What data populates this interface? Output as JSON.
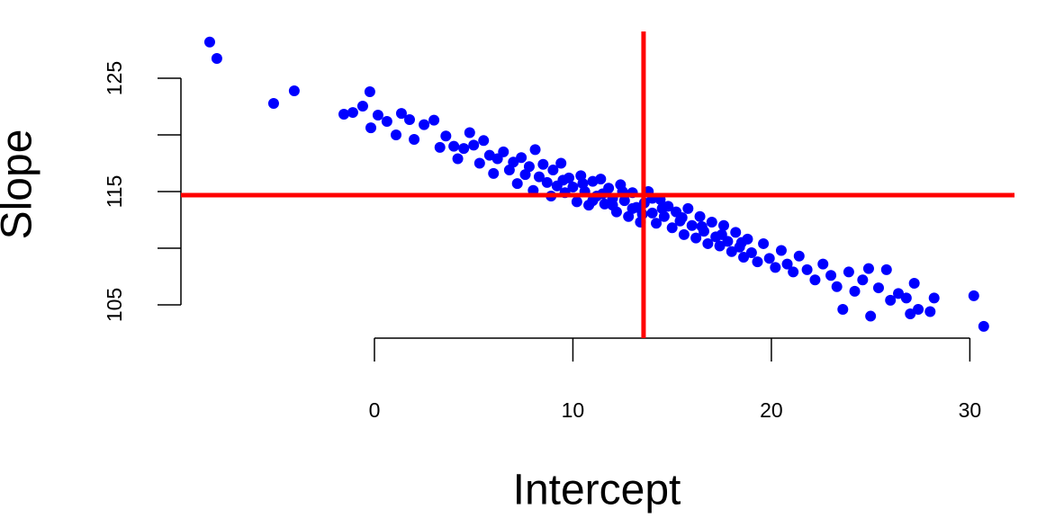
{
  "chart_data": {
    "type": "scatter",
    "x_label": "Intercept",
    "y_label": "Slope",
    "x": [
      -8.3,
      -7.94,
      -5.08,
      -4.04,
      -1.54,
      -1.09,
      -0.59,
      -0.23,
      -0.18,
      0.18,
      0.63,
      1.09,
      1.36,
      1.77,
      2.0,
      2.5,
      3.0,
      3.3,
      3.6,
      4.0,
      4.2,
      4.5,
      4.8,
      5.0,
      5.3,
      5.5,
      5.8,
      6.0,
      6.2,
      6.5,
      6.8,
      7.0,
      7.2,
      7.4,
      7.6,
      7.8,
      8.0,
      8.1,
      8.3,
      8.5,
      8.7,
      8.9,
      9.0,
      9.2,
      9.4,
      9.6,
      9.8,
      10.0,
      10.2,
      10.4,
      10.6,
      10.8,
      11.0,
      11.2,
      11.4,
      11.6,
      11.8,
      12.0,
      12.2,
      12.4,
      12.6,
      12.8,
      13.0,
      13.2,
      13.4,
      13.6,
      13.8,
      14.0,
      14.2,
      14.4,
      14.6,
      14.8,
      15.0,
      15.2,
      15.4,
      15.6,
      15.8,
      16.0,
      16.2,
      16.4,
      16.6,
      16.8,
      17.0,
      17.2,
      17.4,
      17.6,
      17.8,
      18.0,
      18.2,
      18.4,
      18.6,
      18.8,
      19.0,
      19.3,
      19.6,
      19.9,
      20.2,
      20.5,
      20.8,
      21.1,
      21.4,
      21.8,
      22.2,
      22.6,
      23.0,
      23.3,
      23.6,
      23.9,
      24.2,
      24.6,
      24.9,
      25.0,
      25.4,
      25.8,
      26.0,
      26.4,
      26.8,
      27.0,
      27.2,
      27.4,
      28.0,
      28.2,
      30.2,
      30.7,
      11.5,
      12.5,
      13.0,
      14.5,
      15.5,
      10.5,
      9.5,
      16.5,
      17.5,
      12.0,
      13.5,
      14.0,
      11.0,
      18.5
    ],
    "values": [
      128.2,
      126.75,
      122.78,
      123.89,
      121.83,
      121.98,
      122.54,
      123.81,
      120.63,
      121.75,
      121.19,
      120.0,
      121.9,
      121.35,
      119.6,
      120.9,
      121.3,
      118.9,
      119.9,
      119.0,
      117.9,
      118.8,
      120.2,
      119.1,
      117.5,
      119.5,
      118.2,
      116.6,
      117.9,
      118.5,
      116.9,
      117.6,
      115.7,
      118.0,
      116.5,
      117.2,
      115.1,
      118.7,
      116.3,
      117.4,
      115.8,
      114.6,
      116.9,
      115.5,
      117.5,
      114.9,
      116.2,
      115.4,
      114.1,
      116.4,
      115.0,
      113.8,
      115.9,
      114.6,
      116.1,
      113.9,
      115.3,
      114.4,
      113.2,
      115.6,
      114.2,
      112.8,
      114.9,
      113.6,
      112.3,
      114.0,
      115.0,
      113.1,
      112.2,
      114.3,
      112.8,
      113.7,
      111.8,
      113.2,
      112.4,
      111.2,
      113.5,
      112.0,
      110.9,
      112.8,
      111.5,
      110.4,
      112.3,
      111.0,
      110.2,
      112.0,
      110.6,
      109.7,
      111.4,
      110.1,
      109.2,
      110.8,
      109.6,
      108.8,
      110.4,
      109.1,
      108.3,
      109.8,
      108.6,
      107.9,
      109.3,
      108.1,
      107.2,
      108.6,
      107.6,
      106.6,
      104.6,
      107.9,
      106.2,
      107.2,
      108.2,
      104.0,
      106.5,
      108.1,
      105.4,
      106.0,
      105.6,
      104.2,
      106.9,
      104.6,
      104.4,
      105.6,
      105.8,
      103.1,
      114.8,
      115.0,
      113.5,
      113.5,
      112.7,
      115.7,
      116.0,
      111.9,
      111.2,
      113.8,
      113.0,
      114.4,
      114.2,
      110.5
    ],
    "color": "#0000ff",
    "xlim": [
      -9.75,
      32.25
    ],
    "ylim": [
      102.06,
      129.13
    ],
    "xticks": [
      0,
      10,
      20,
      30
    ],
    "yticks": [
      105,
      115,
      125
    ],
    "y_minor_ticks": [
      110,
      120
    ],
    "vline": 13.56,
    "hline": 114.68,
    "line_color": "#ff0000"
  }
}
